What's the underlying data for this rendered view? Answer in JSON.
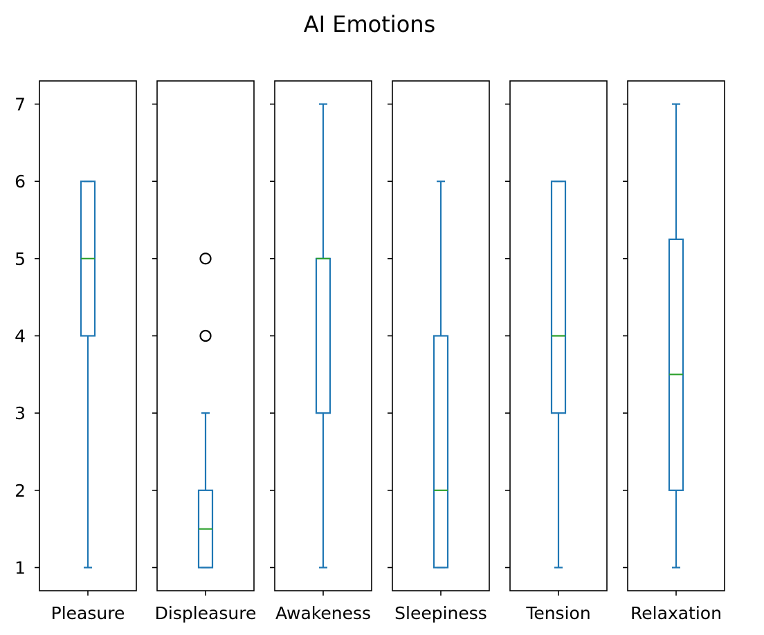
{
  "chart_data": {
    "type": "box",
    "title": "AI Emotions",
    "ylim": [
      0.7,
      7.3
    ],
    "yticks": [
      1,
      2,
      3,
      4,
      5,
      6,
      7
    ],
    "grid": false,
    "colors": {
      "box": "#1f77b4",
      "median": "#2ca02c",
      "outlier": "#000000",
      "frame": "#000000"
    },
    "panels": [
      {
        "name": "Pleasure",
        "whisker_low": 1,
        "q1": 4,
        "median": 5,
        "q3": 6,
        "whisker_high": 6,
        "outliers": []
      },
      {
        "name": "Displeasure",
        "whisker_low": 1,
        "q1": 1,
        "median": 1.5,
        "q3": 2,
        "whisker_high": 3,
        "outliers": [
          4,
          5
        ]
      },
      {
        "name": "Awakeness",
        "whisker_low": 1,
        "q1": 3,
        "median": 5,
        "q3": 5,
        "whisker_high": 7,
        "outliers": []
      },
      {
        "name": "Sleepiness",
        "whisker_low": 1,
        "q1": 1,
        "median": 2,
        "q3": 4,
        "whisker_high": 6,
        "outliers": []
      },
      {
        "name": "Tension",
        "whisker_low": 1,
        "q1": 3,
        "median": 4,
        "q3": 6,
        "whisker_high": 6,
        "outliers": []
      },
      {
        "name": "Relaxation",
        "whisker_low": 1,
        "q1": 2,
        "median": 3.5,
        "q3": 5.25,
        "whisker_high": 7,
        "outliers": []
      }
    ]
  }
}
